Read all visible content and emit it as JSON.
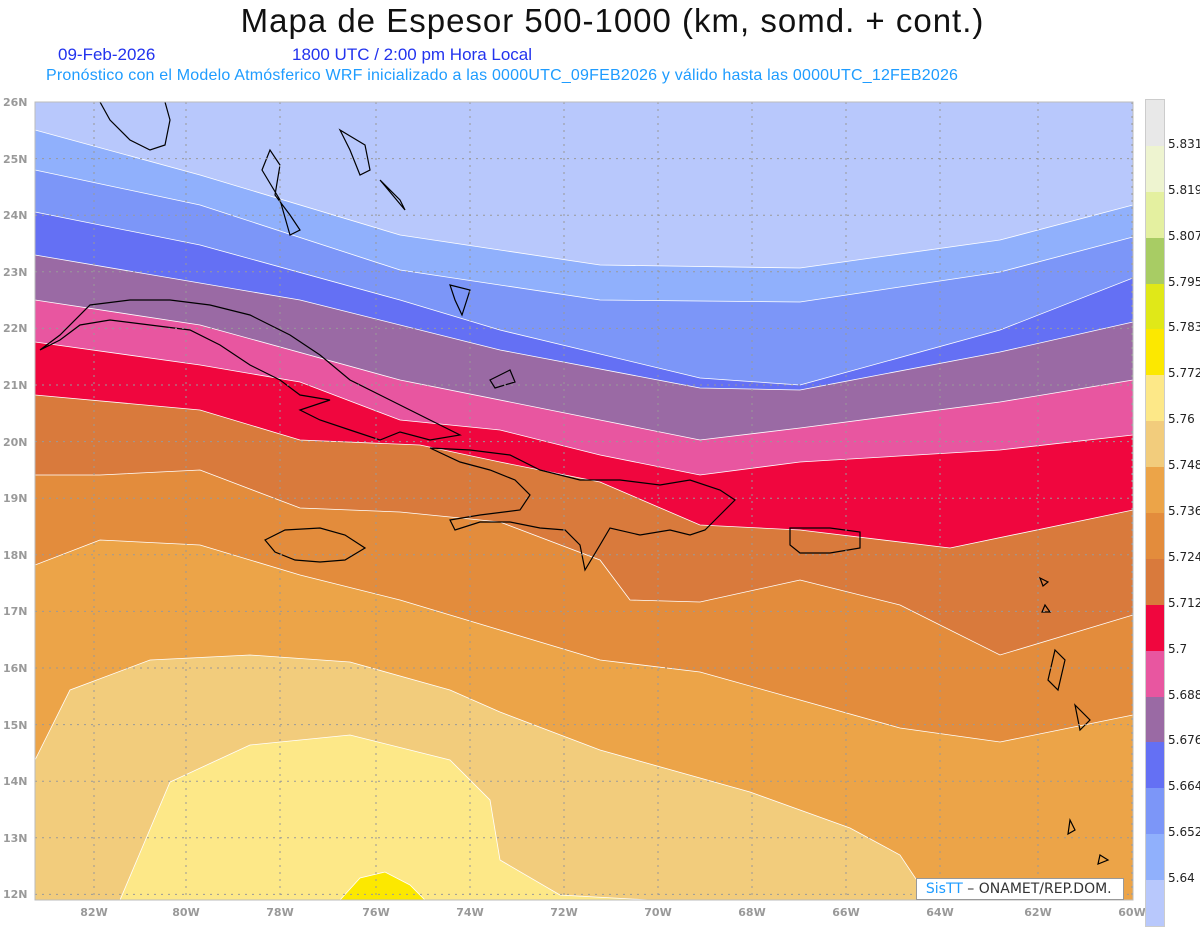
{
  "header": {
    "title": "Mapa de Espesor 500-1000 (km, somd. + cont.)",
    "date": "09-Feb-2026",
    "time": "1800 UTC / 2:00 pm Hora Local",
    "description": "Pronóstico con el Modelo Atmósferico WRF inicializado a las 0000UTC_09FEB2026 y válido hasta las  0000UTC_12FEB2026"
  },
  "axes": {
    "lat_labels": [
      "26N",
      "25N",
      "24N",
      "23N",
      "22N",
      "21N",
      "20N",
      "19N",
      "18N",
      "17N",
      "16N",
      "15N",
      "14N",
      "13N",
      "12N"
    ],
    "lon_labels": [
      "82W",
      "80W",
      "78W",
      "76W",
      "74W",
      "72W",
      "70W",
      "68W",
      "66W",
      "64W",
      "62W",
      "60W"
    ]
  },
  "colorbar": {
    "labels": [
      "5.64",
      "5.652",
      "5.664",
      "5.676",
      "5.688",
      "5.7",
      "5.712",
      "5.724",
      "5.736",
      "5.748",
      "5.76",
      "5.772",
      "5.783",
      "5.795",
      "5.807",
      "5.819",
      "5.831"
    ],
    "colors": [
      "#b8c8fc",
      "#90b0fc",
      "#7c96f8",
      "#6470f4",
      "#9a6aa4",
      "#e856a0",
      "#f0063e",
      "#d97a3c",
      "#e38c3c",
      "#eca448",
      "#f2cc7c",
      "#fde888",
      "#fce800",
      "#e0e818",
      "#a8cc64",
      "#e4f0a0",
      "#eef4d0",
      "#e8e8e8"
    ]
  },
  "logo": {
    "brand": "SisTT",
    "separator": " – ",
    "org": "ONAMET/REP.DOM."
  }
}
